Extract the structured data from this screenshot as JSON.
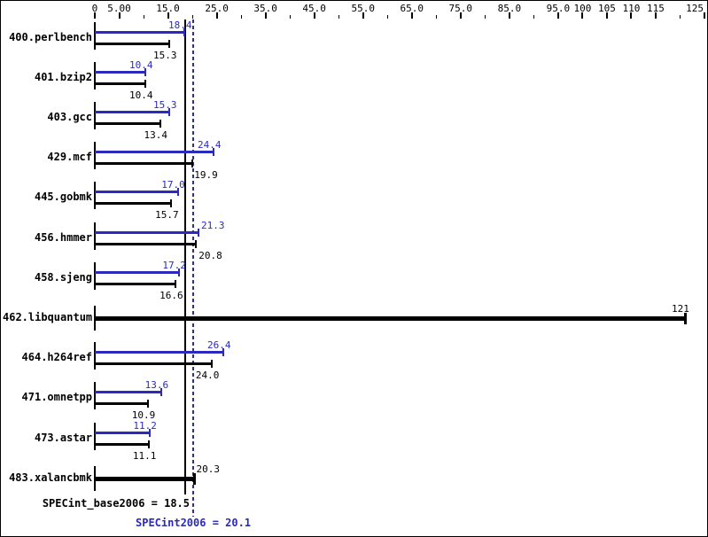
{
  "chart_data": {
    "type": "bar",
    "orientation": "horizontal",
    "axis": {
      "range": [
        0,
        125
      ],
      "position": "top",
      "ticks": [
        {
          "value": 0,
          "label": "0"
        },
        {
          "value": 5,
          "label": "5.00"
        },
        {
          "value": 10
        },
        {
          "value": 15,
          "label": "15.0"
        },
        {
          "value": 20
        },
        {
          "value": 25,
          "label": "25.0"
        },
        {
          "value": 30
        },
        {
          "value": 35,
          "label": "35.0"
        },
        {
          "value": 40
        },
        {
          "value": 45,
          "label": "45.0"
        },
        {
          "value": 50
        },
        {
          "value": 55,
          "label": "55.0"
        },
        {
          "value": 60
        },
        {
          "value": 65,
          "label": "65.0"
        },
        {
          "value": 70
        },
        {
          "value": 75,
          "label": "75.0"
        },
        {
          "value": 80
        },
        {
          "value": 85,
          "label": "85.0"
        },
        {
          "value": 90
        },
        {
          "value": 95,
          "label": "95.0"
        },
        {
          "value": 100,
          "label": "100"
        },
        {
          "value": 105,
          "label": "105"
        },
        {
          "value": 110,
          "label": "110"
        },
        {
          "value": 115,
          "label": "115"
        },
        {
          "value": 120
        },
        {
          "value": 125,
          "label": "125"
        }
      ]
    },
    "series": [
      {
        "name": "SPECint2006 (peak)",
        "color": "#2a2ac0"
      },
      {
        "name": "SPECint_base2006 (base)",
        "color": "#000000"
      }
    ],
    "benchmarks": [
      {
        "name": "400.perlbench",
        "peak": 18.4,
        "peak_label": "18.4",
        "base": 15.3,
        "base_label": "15.3"
      },
      {
        "name": "401.bzip2",
        "peak": 10.4,
        "peak_label": "10.4",
        "base": 10.4,
        "base_label": "10.4"
      },
      {
        "name": "403.gcc",
        "peak": 15.3,
        "peak_label": "15.3",
        "base": 13.4,
        "base_label": "13.4"
      },
      {
        "name": "429.mcf",
        "peak": 24.4,
        "peak_label": "24.4",
        "base": 19.9,
        "base_label": "19.9"
      },
      {
        "name": "445.gobmk",
        "peak": 17.0,
        "peak_label": "17.0",
        "base": 15.7,
        "base_label": "15.7"
      },
      {
        "name": "456.hmmer",
        "peak": 21.3,
        "peak_label": "21.3",
        "base": 20.8,
        "base_label": "20.8"
      },
      {
        "name": "458.sjeng",
        "peak": 17.2,
        "peak_label": "17.2",
        "base": 16.6,
        "base_label": "16.6"
      },
      {
        "name": "462.libquantum",
        "single": true,
        "value": 121,
        "value_label": "121"
      },
      {
        "name": "464.h264ref",
        "peak": 26.4,
        "peak_label": "26.4",
        "base": 24.0,
        "base_label": "24.0"
      },
      {
        "name": "471.omnetpp",
        "peak": 13.6,
        "peak_label": "13.6",
        "base": 10.9,
        "base_label": "10.9"
      },
      {
        "name": "473.astar",
        "peak": 11.2,
        "peak_label": "11.2",
        "base": 11.1,
        "base_label": "11.1"
      },
      {
        "name": "483.xalancbmk",
        "single": true,
        "value": 20.3,
        "value_label": "20.3"
      }
    ],
    "summary": {
      "base_text": "SPECint_base2006 = 18.5",
      "base_value": 18.5,
      "peak_text": "SPECint2006 = 20.1",
      "peak_value": 20.1
    },
    "colors": {
      "peak_blue": "#2a2ac0",
      "base_black": "#000000",
      "background": "#ffffff"
    }
  }
}
